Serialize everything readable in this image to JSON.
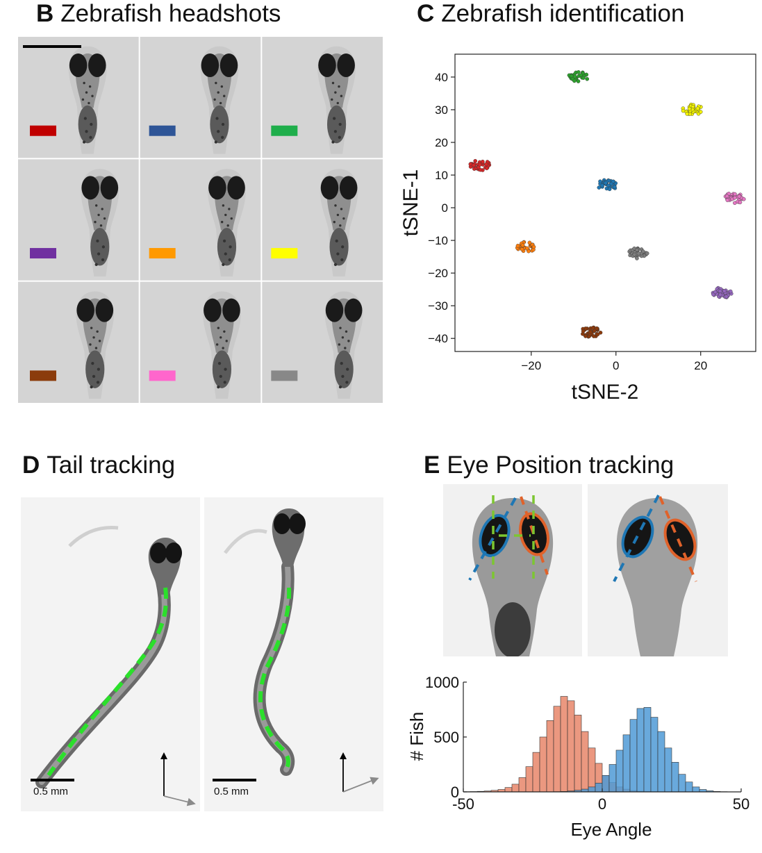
{
  "panels": {
    "B": {
      "letter": "B",
      "title": "Zebrafish headshots"
    },
    "C": {
      "letter": "C",
      "title": "Zebrafish identification"
    },
    "D": {
      "letter": "D",
      "title": "Tail tracking"
    },
    "E": {
      "letter": "E",
      "title": "Eye Position tracking"
    }
  },
  "headshots": {
    "id_colors": [
      "#c00000",
      "#2e5597",
      "#1fae4b",
      "#7030a0",
      "#ff9900",
      "#ffff00",
      "#8b3c0c",
      "#ff66cc",
      "#888888"
    ]
  },
  "tail_tracking": {
    "scale_bar_label": "0.5 mm",
    "track_color": "#2be02b"
  },
  "eye_tracking": {
    "left_eye_color": "#1f77b4",
    "right_eye_color": "#e0622a",
    "reference_color": "#7cc631"
  },
  "chart_data": [
    {
      "type": "scatter",
      "title": "",
      "xlabel": "tSNE-2",
      "ylabel": "tSNE-1",
      "xlim": [
        -38,
        33
      ],
      "ylim": [
        -44,
        47
      ],
      "xticks": [
        -20,
        0,
        20
      ],
      "yticks": [
        40,
        30,
        20,
        10,
        0,
        -10,
        -20,
        -30,
        -40
      ],
      "grid": false,
      "series": [
        {
          "color": "#2ca02c",
          "center": [
            -9,
            40
          ]
        },
        {
          "color": "#f2f200",
          "center": [
            18,
            30
          ]
        },
        {
          "color": "#d62728",
          "center": [
            -32,
            13
          ]
        },
        {
          "color": "#1f77b4",
          "center": [
            -2,
            7
          ]
        },
        {
          "color": "#e377c2",
          "center": [
            28,
            3
          ]
        },
        {
          "color": "#ff7f0e",
          "center": [
            -21,
            -12
          ]
        },
        {
          "color": "#7f7f7f",
          "center": [
            5,
            -14
          ]
        },
        {
          "color": "#9467bd",
          "center": [
            25,
            -26
          ]
        },
        {
          "color": "#8c3a0c",
          "center": [
            -6,
            -38
          ]
        }
      ]
    },
    {
      "type": "histogram",
      "title": "",
      "xlabel": "Eye Angle",
      "ylabel": "# Fish",
      "xlim": [
        -50,
        50
      ],
      "ylim": [
        0,
        1000
      ],
      "xticks": [
        -50,
        0,
        50
      ],
      "yticks": [
        0,
        500,
        1000
      ],
      "bin_width": 2.5,
      "bin_starts": [
        -50,
        -47.5,
        -45,
        -42.5,
        -40,
        -37.5,
        -35,
        -32.5,
        -30,
        -27.5,
        -25,
        -22.5,
        -20,
        -17.5,
        -15,
        -12.5,
        -10,
        -7.5,
        -5,
        -2.5,
        0,
        2.5,
        5,
        7.5,
        10,
        12.5,
        15,
        17.5,
        20,
        22.5,
        25,
        27.5,
        30,
        32.5,
        35,
        37.5,
        40,
        42.5,
        45,
        47.5
      ],
      "series": [
        {
          "color": "#e8866a",
          "counts": [
            2,
            3,
            5,
            8,
            14,
            22,
            40,
            70,
            130,
            230,
            360,
            500,
            650,
            780,
            870,
            830,
            700,
            550,
            400,
            260,
            150,
            85,
            45,
            25,
            12,
            6,
            3,
            2,
            1,
            0,
            0,
            0,
            0,
            0,
            0,
            0,
            0,
            0,
            0,
            0
          ]
        },
        {
          "color": "#4f9ad6",
          "counts": [
            0,
            0,
            0,
            0,
            0,
            0,
            0,
            0,
            0,
            0,
            0,
            0,
            1,
            2,
            4,
            8,
            15,
            25,
            45,
            80,
            150,
            250,
            380,
            520,
            660,
            760,
            770,
            680,
            550,
            400,
            270,
            160,
            90,
            45,
            22,
            10,
            4,
            2,
            1,
            0
          ]
        }
      ]
    }
  ]
}
